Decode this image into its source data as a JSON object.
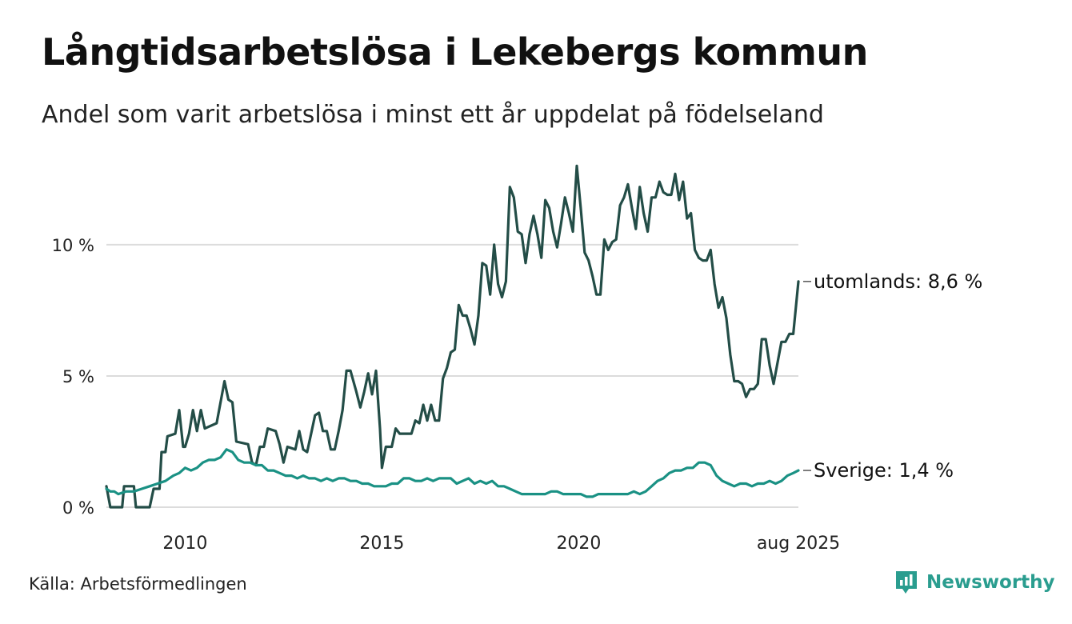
{
  "title": "Långtidsarbetslösa i Lekebergs kommun",
  "subtitle": "Andel som varit arbetslösa i minst ett år uppdelat på födelseland",
  "source": "Källa: Arbetsförmedlingen",
  "brand": {
    "name": "Newsworthy",
    "color": "#2a9d8f"
  },
  "chart_data": {
    "type": "line",
    "ylim": [
      0,
      12.8
    ],
    "xlim": [
      2008.0,
      2025.58
    ],
    "y_ticks": [
      {
        "value": 0,
        "label": "0 %"
      },
      {
        "value": 5,
        "label": "5 %"
      },
      {
        "value": 10,
        "label": "10 %"
      }
    ],
    "x_ticks": [
      {
        "value": 2010,
        "label": "2010"
      },
      {
        "value": 2015,
        "label": "2015"
      },
      {
        "value": 2020,
        "label": "2020"
      },
      {
        "value": 2025.58,
        "label": "aug 2025"
      }
    ],
    "grid": true,
    "series": [
      {
        "name": "utomlands",
        "end_label": "utomlands: 8,6 %",
        "color": "#234d47",
        "points": [
          [
            2008.0,
            0.8
          ],
          [
            2008.1,
            0.0
          ],
          [
            2008.4,
            0.0
          ],
          [
            2008.45,
            0.8
          ],
          [
            2008.7,
            0.8
          ],
          [
            2008.75,
            0.0
          ],
          [
            2009.1,
            0.0
          ],
          [
            2009.2,
            0.7
          ],
          [
            2009.35,
            0.7
          ],
          [
            2009.4,
            2.1
          ],
          [
            2009.5,
            2.1
          ],
          [
            2009.55,
            2.7
          ],
          [
            2009.75,
            2.8
          ],
          [
            2009.85,
            3.7
          ],
          [
            2009.95,
            2.3
          ],
          [
            2010.0,
            2.3
          ],
          [
            2010.1,
            2.8
          ],
          [
            2010.2,
            3.7
          ],
          [
            2010.3,
            2.9
          ],
          [
            2010.4,
            3.7
          ],
          [
            2010.5,
            3.0
          ],
          [
            2010.8,
            3.2
          ],
          [
            2010.9,
            4.0
          ],
          [
            2011.0,
            4.8
          ],
          [
            2011.1,
            4.1
          ],
          [
            2011.2,
            4.0
          ],
          [
            2011.3,
            2.5
          ],
          [
            2011.6,
            2.4
          ],
          [
            2011.7,
            1.7
          ],
          [
            2011.8,
            1.6
          ],
          [
            2011.9,
            2.3
          ],
          [
            2012.0,
            2.3
          ],
          [
            2012.1,
            3.0
          ],
          [
            2012.3,
            2.9
          ],
          [
            2012.4,
            2.4
          ],
          [
            2012.5,
            1.7
          ],
          [
            2012.6,
            2.3
          ],
          [
            2012.8,
            2.2
          ],
          [
            2012.9,
            2.9
          ],
          [
            2013.0,
            2.2
          ],
          [
            2013.1,
            2.1
          ],
          [
            2013.2,
            2.8
          ],
          [
            2013.3,
            3.5
          ],
          [
            2013.4,
            3.6
          ],
          [
            2013.5,
            2.9
          ],
          [
            2013.6,
            2.9
          ],
          [
            2013.7,
            2.2
          ],
          [
            2013.8,
            2.2
          ],
          [
            2013.9,
            2.9
          ],
          [
            2014.0,
            3.7
          ],
          [
            2014.1,
            5.2
          ],
          [
            2014.2,
            5.2
          ],
          [
            2014.35,
            4.4
          ],
          [
            2014.45,
            3.8
          ],
          [
            2014.55,
            4.4
          ],
          [
            2014.65,
            5.1
          ],
          [
            2014.75,
            4.3
          ],
          [
            2014.85,
            5.2
          ],
          [
            2014.95,
            3.0
          ],
          [
            2015.0,
            1.5
          ],
          [
            2015.1,
            2.3
          ],
          [
            2015.25,
            2.3
          ],
          [
            2015.35,
            3.0
          ],
          [
            2015.45,
            2.8
          ],
          [
            2015.6,
            2.8
          ],
          [
            2015.75,
            2.8
          ],
          [
            2015.85,
            3.3
          ],
          [
            2015.95,
            3.2
          ],
          [
            2016.05,
            3.9
          ],
          [
            2016.15,
            3.3
          ],
          [
            2016.25,
            3.9
          ],
          [
            2016.35,
            3.3
          ],
          [
            2016.45,
            3.3
          ],
          [
            2016.55,
            4.9
          ],
          [
            2016.65,
            5.3
          ],
          [
            2016.75,
            5.9
          ],
          [
            2016.85,
            6.0
          ],
          [
            2016.95,
            7.7
          ],
          [
            2017.05,
            7.3
          ],
          [
            2017.15,
            7.3
          ],
          [
            2017.25,
            6.8
          ],
          [
            2017.35,
            6.2
          ],
          [
            2017.45,
            7.3
          ],
          [
            2017.55,
            9.3
          ],
          [
            2017.65,
            9.2
          ],
          [
            2017.75,
            8.1
          ],
          [
            2017.85,
            10.0
          ],
          [
            2017.95,
            8.5
          ],
          [
            2018.05,
            8.0
          ],
          [
            2018.15,
            8.6
          ],
          [
            2018.25,
            12.2
          ],
          [
            2018.35,
            11.8
          ],
          [
            2018.45,
            10.5
          ],
          [
            2018.55,
            10.4
          ],
          [
            2018.65,
            9.3
          ],
          [
            2018.75,
            10.4
          ],
          [
            2018.85,
            11.1
          ],
          [
            2018.95,
            10.4
          ],
          [
            2019.05,
            9.5
          ],
          [
            2019.15,
            11.7
          ],
          [
            2019.25,
            11.4
          ],
          [
            2019.35,
            10.5
          ],
          [
            2019.45,
            9.9
          ],
          [
            2019.55,
            10.8
          ],
          [
            2019.65,
            11.8
          ],
          [
            2019.75,
            11.2
          ],
          [
            2019.85,
            10.5
          ],
          [
            2019.95,
            13.0
          ],
          [
            2020.05,
            11.4
          ],
          [
            2020.15,
            9.7
          ],
          [
            2020.25,
            9.4
          ],
          [
            2020.35,
            8.8
          ],
          [
            2020.45,
            8.1
          ],
          [
            2020.55,
            8.1
          ],
          [
            2020.65,
            10.2
          ],
          [
            2020.75,
            9.8
          ],
          [
            2020.85,
            10.1
          ],
          [
            2020.95,
            10.2
          ],
          [
            2021.05,
            11.5
          ],
          [
            2021.15,
            11.8
          ],
          [
            2021.25,
            12.3
          ],
          [
            2021.35,
            11.4
          ],
          [
            2021.45,
            10.6
          ],
          [
            2021.55,
            12.2
          ],
          [
            2021.65,
            11.2
          ],
          [
            2021.75,
            10.5
          ],
          [
            2021.85,
            11.8
          ],
          [
            2021.95,
            11.8
          ],
          [
            2022.05,
            12.4
          ],
          [
            2022.15,
            12.0
          ],
          [
            2022.25,
            11.9
          ],
          [
            2022.35,
            11.9
          ],
          [
            2022.45,
            12.7
          ],
          [
            2022.55,
            11.7
          ],
          [
            2022.65,
            12.4
          ],
          [
            2022.75,
            11.0
          ],
          [
            2022.85,
            11.2
          ],
          [
            2022.95,
            9.8
          ],
          [
            2023.05,
            9.5
          ],
          [
            2023.15,
            9.4
          ],
          [
            2023.25,
            9.4
          ],
          [
            2023.35,
            9.8
          ],
          [
            2023.45,
            8.5
          ],
          [
            2023.55,
            7.6
          ],
          [
            2023.65,
            8.0
          ],
          [
            2023.75,
            7.2
          ],
          [
            2023.85,
            5.8
          ],
          [
            2023.95,
            4.8
          ],
          [
            2024.05,
            4.8
          ],
          [
            2024.15,
            4.7
          ],
          [
            2024.25,
            4.2
          ],
          [
            2024.35,
            4.5
          ],
          [
            2024.45,
            4.5
          ],
          [
            2024.55,
            4.7
          ],
          [
            2024.65,
            6.4
          ],
          [
            2024.75,
            6.4
          ],
          [
            2024.85,
            5.4
          ],
          [
            2024.95,
            4.7
          ],
          [
            2025.05,
            5.5
          ],
          [
            2025.15,
            6.3
          ],
          [
            2025.25,
            6.3
          ],
          [
            2025.35,
            6.6
          ],
          [
            2025.45,
            6.6
          ],
          [
            2025.58,
            8.6
          ]
        ]
      },
      {
        "name": "Sverige",
        "end_label": "Sverige: 1,4 %",
        "color": "#1a9184",
        "points": [
          [
            2008.0,
            0.7
          ],
          [
            2008.1,
            0.6
          ],
          [
            2008.2,
            0.6
          ],
          [
            2008.3,
            0.5
          ],
          [
            2008.5,
            0.6
          ],
          [
            2008.7,
            0.6
          ],
          [
            2008.9,
            0.7
          ],
          [
            2009.1,
            0.8
          ],
          [
            2009.3,
            0.9
          ],
          [
            2009.5,
            1.0
          ],
          [
            2009.7,
            1.2
          ],
          [
            2009.85,
            1.3
          ],
          [
            2010.0,
            1.5
          ],
          [
            2010.15,
            1.4
          ],
          [
            2010.3,
            1.5
          ],
          [
            2010.45,
            1.7
          ],
          [
            2010.6,
            1.8
          ],
          [
            2010.75,
            1.8
          ],
          [
            2010.9,
            1.9
          ],
          [
            2011.05,
            2.2
          ],
          [
            2011.2,
            2.1
          ],
          [
            2011.35,
            1.8
          ],
          [
            2011.5,
            1.7
          ],
          [
            2011.65,
            1.7
          ],
          [
            2011.8,
            1.6
          ],
          [
            2011.95,
            1.6
          ],
          [
            2012.1,
            1.4
          ],
          [
            2012.25,
            1.4
          ],
          [
            2012.4,
            1.3
          ],
          [
            2012.55,
            1.2
          ],
          [
            2012.7,
            1.2
          ],
          [
            2012.85,
            1.1
          ],
          [
            2013.0,
            1.2
          ],
          [
            2013.15,
            1.1
          ],
          [
            2013.3,
            1.1
          ],
          [
            2013.45,
            1.0
          ],
          [
            2013.6,
            1.1
          ],
          [
            2013.75,
            1.0
          ],
          [
            2013.9,
            1.1
          ],
          [
            2014.05,
            1.1
          ],
          [
            2014.2,
            1.0
          ],
          [
            2014.35,
            1.0
          ],
          [
            2014.5,
            0.9
          ],
          [
            2014.65,
            0.9
          ],
          [
            2014.8,
            0.8
          ],
          [
            2014.95,
            0.8
          ],
          [
            2015.1,
            0.8
          ],
          [
            2015.25,
            0.9
          ],
          [
            2015.4,
            0.9
          ],
          [
            2015.55,
            1.1
          ],
          [
            2015.7,
            1.1
          ],
          [
            2015.85,
            1.0
          ],
          [
            2016.0,
            1.0
          ],
          [
            2016.15,
            1.1
          ],
          [
            2016.3,
            1.0
          ],
          [
            2016.45,
            1.1
          ],
          [
            2016.6,
            1.1
          ],
          [
            2016.75,
            1.1
          ],
          [
            2016.9,
            0.9
          ],
          [
            2017.05,
            1.0
          ],
          [
            2017.2,
            1.1
          ],
          [
            2017.35,
            0.9
          ],
          [
            2017.5,
            1.0
          ],
          [
            2017.65,
            0.9
          ],
          [
            2017.8,
            1.0
          ],
          [
            2017.95,
            0.8
          ],
          [
            2018.1,
            0.8
          ],
          [
            2018.25,
            0.7
          ],
          [
            2018.4,
            0.6
          ],
          [
            2018.55,
            0.5
          ],
          [
            2018.7,
            0.5
          ],
          [
            2018.85,
            0.5
          ],
          [
            2019.0,
            0.5
          ],
          [
            2019.15,
            0.5
          ],
          [
            2019.3,
            0.6
          ],
          [
            2019.45,
            0.6
          ],
          [
            2019.6,
            0.5
          ],
          [
            2019.75,
            0.5
          ],
          [
            2019.9,
            0.5
          ],
          [
            2020.05,
            0.5
          ],
          [
            2020.2,
            0.4
          ],
          [
            2020.35,
            0.4
          ],
          [
            2020.5,
            0.5
          ],
          [
            2020.65,
            0.5
          ],
          [
            2020.8,
            0.5
          ],
          [
            2020.95,
            0.5
          ],
          [
            2021.1,
            0.5
          ],
          [
            2021.25,
            0.5
          ],
          [
            2021.4,
            0.6
          ],
          [
            2021.55,
            0.5
          ],
          [
            2021.7,
            0.6
          ],
          [
            2021.85,
            0.8
          ],
          [
            2022.0,
            1.0
          ],
          [
            2022.15,
            1.1
          ],
          [
            2022.3,
            1.3
          ],
          [
            2022.45,
            1.4
          ],
          [
            2022.6,
            1.4
          ],
          [
            2022.75,
            1.5
          ],
          [
            2022.9,
            1.5
          ],
          [
            2023.05,
            1.7
          ],
          [
            2023.2,
            1.7
          ],
          [
            2023.35,
            1.6
          ],
          [
            2023.5,
            1.2
          ],
          [
            2023.65,
            1.0
          ],
          [
            2023.8,
            0.9
          ],
          [
            2023.95,
            0.8
          ],
          [
            2024.1,
            0.9
          ],
          [
            2024.25,
            0.9
          ],
          [
            2024.4,
            0.8
          ],
          [
            2024.55,
            0.9
          ],
          [
            2024.7,
            0.9
          ],
          [
            2024.85,
            1.0
          ],
          [
            2025.0,
            0.9
          ],
          [
            2025.15,
            1.0
          ],
          [
            2025.3,
            1.2
          ],
          [
            2025.45,
            1.3
          ],
          [
            2025.58,
            1.4
          ]
        ]
      }
    ]
  }
}
